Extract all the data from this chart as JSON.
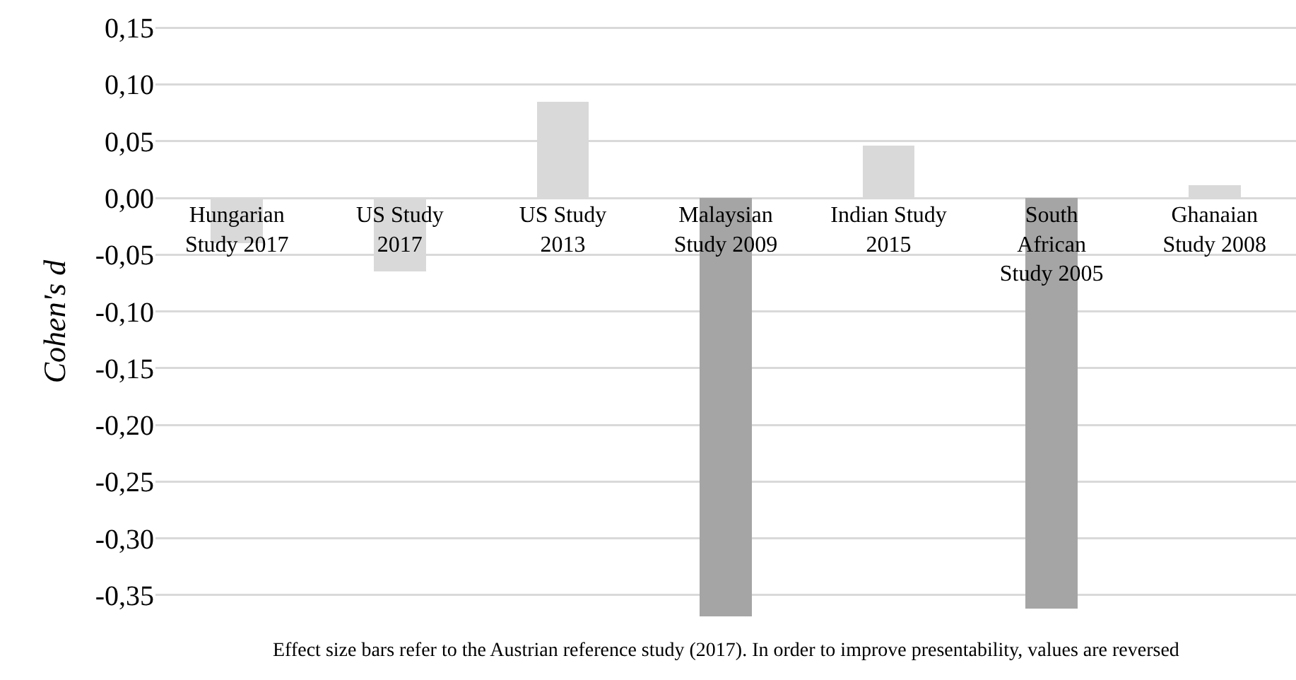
{
  "chart_data": {
    "type": "bar",
    "ylabel": "Cohen's d",
    "categories": [
      "Hungarian Study 2017",
      "US Study 2017",
      "US Study 2013",
      "Malaysian Study 2009",
      "Indian Study 2015",
      "South African Study 2005",
      "Ghanaian Study 2008"
    ],
    "values": [
      -0.04,
      -0.065,
      0.085,
      -0.369,
      0.046,
      -0.362,
      0.011
    ],
    "colors": [
      "#d9d9d9",
      "#d9d9d9",
      "#d9d9d9",
      "#a5a5a5",
      "#d9d9d9",
      "#a5a5a5",
      "#d9d9d9"
    ],
    "ylim": [
      -0.37,
      0.152
    ],
    "yticks": [
      {
        "value": -0.35,
        "label": "-0,35"
      },
      {
        "value": -0.3,
        "label": "-0,30"
      },
      {
        "value": -0.25,
        "label": "-0,25"
      },
      {
        "value": -0.2,
        "label": "-0,20"
      },
      {
        "value": -0.15,
        "label": "-0,15"
      },
      {
        "value": -0.1,
        "label": "-0,10"
      },
      {
        "value": -0.05,
        "label": "-0,05"
      },
      {
        "value": 0,
        "label": "0,00"
      },
      {
        "value": 0.05,
        "label": "0,05"
      },
      {
        "value": 0.1,
        "label": "0,10"
      },
      {
        "value": 0.15,
        "label": "0,15"
      }
    ],
    "grid": "y",
    "annotations": [
      "Effect size bars refer to the Austrian reference study (2017). In order to improve presentability, values are reversed"
    ]
  }
}
